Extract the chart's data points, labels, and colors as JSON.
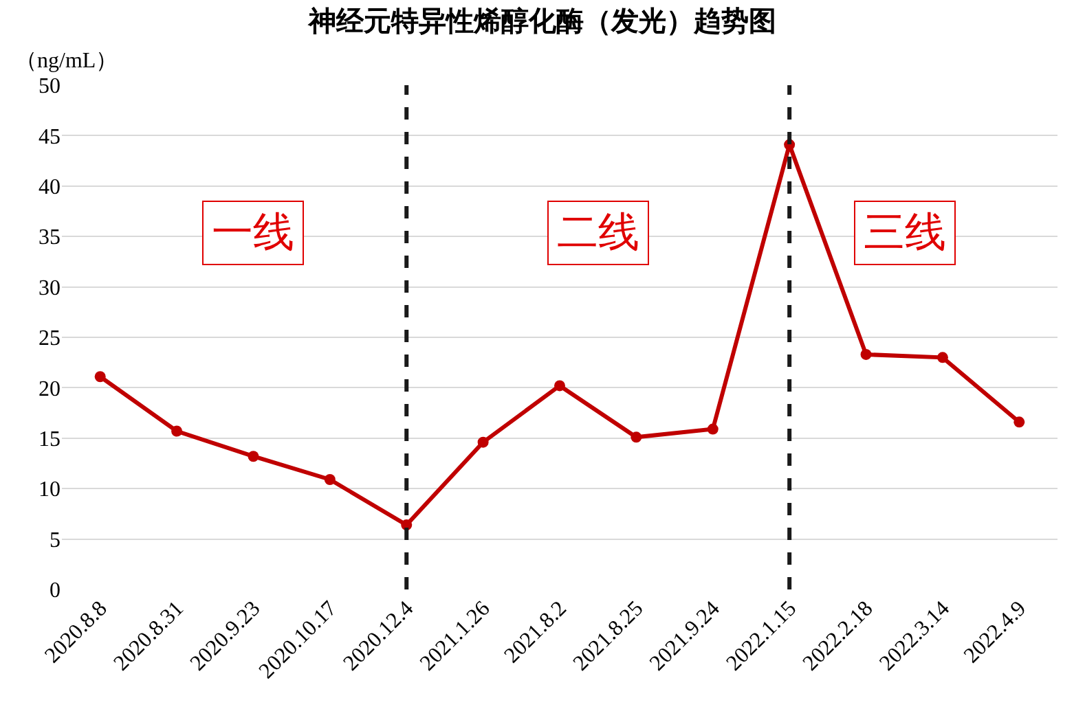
{
  "chart_data": {
    "type": "line",
    "title": "神经元特异性烯醇化酶（发光）趋势图",
    "ylabel": "（ng/mL）",
    "categories": [
      "2020.8.8",
      "2020.8.31",
      "2020.9.23",
      "2020.10.17",
      "2020.12.4",
      "2021.1.26",
      "2021.8.2",
      "2021.8.25",
      "2021.9.24",
      "2022.1.15",
      "2022.2.18",
      "2022.3.14",
      "2022.4.9"
    ],
    "series": [
      {
        "color": "#c00000",
        "values": [
          21.1,
          15.7,
          13.2,
          10.9,
          6.4,
          14.6,
          20.2,
          15.1,
          15.9,
          44.1,
          23.3,
          23.0,
          16.6
        ]
      }
    ],
    "ylim": [
      0,
      50
    ],
    "yticks": [
      0,
      5,
      10,
      15,
      20,
      25,
      30,
      35,
      40,
      45,
      50
    ],
    "grid": "y",
    "marker": "circle",
    "line_style": "solid",
    "legend": false,
    "ref_lines": [
      {
        "axis": "x",
        "value": "2020.12.4",
        "color": "#1a1a1a",
        "line_style": "dashed"
      },
      {
        "axis": "x",
        "value": "2022.1.15",
        "color": "#1a1a1a",
        "line_style": "dashed"
      }
    ],
    "annotations": [
      "一线",
      "二线",
      "三线"
    ]
  }
}
